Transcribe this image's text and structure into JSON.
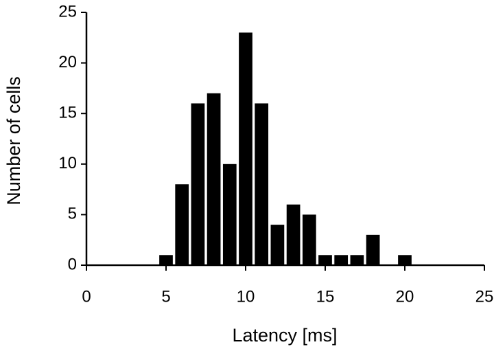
{
  "chart_data": {
    "type": "bar",
    "xlabel": "Latency [ms]",
    "ylabel": "Number of cells",
    "x": [
      5,
      6,
      7,
      8,
      9,
      10,
      11,
      12,
      13,
      14,
      15,
      16,
      17,
      18,
      20
    ],
    "values": [
      1,
      8,
      16,
      17,
      10,
      23,
      16,
      4,
      6,
      5,
      1,
      1,
      1,
      3,
      1
    ],
    "color": "#000000",
    "xlim": [
      0,
      25
    ],
    "xticks": [
      0,
      5,
      10,
      15,
      20,
      25
    ],
    "ylim": [
      0,
      25
    ],
    "yticks": [
      0,
      5,
      10,
      15,
      20,
      25
    ],
    "grid": false
  }
}
